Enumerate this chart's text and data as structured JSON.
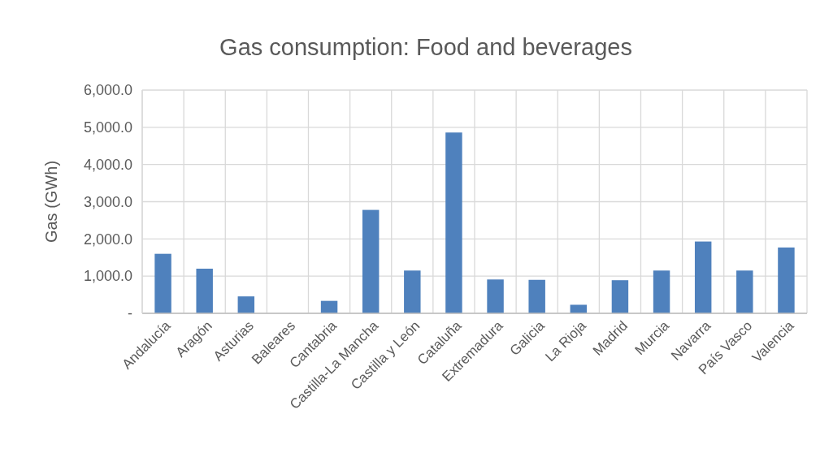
{
  "chart_data": {
    "type": "bar",
    "title": "Gas consumption: Food and beverages",
    "ylabel": "Gas (GWh)",
    "categories": [
      "Andalucía",
      "Aragón",
      "Asturias",
      "Baleares",
      "Cantabria",
      "Castilla-La Mancha",
      "Castilla y León",
      "Cataluña",
      "Extremadura",
      "Galicia",
      "La Rioja",
      "Madrid",
      "Murcia",
      "Navarra",
      "País Vasco",
      "Valencia"
    ],
    "values": [
      1600,
      1200,
      455,
      0,
      335,
      2780,
      1150,
      4860,
      910,
      900,
      230,
      890,
      1150,
      1930,
      1150,
      1770
    ],
    "color": "#4f81bd",
    "ylim": [
      0,
      6000
    ],
    "yticks": [
      {
        "value": 0,
        "label": "-"
      },
      {
        "value": 1000,
        "label": "1,000.0"
      },
      {
        "value": 2000,
        "label": "2,000.0"
      },
      {
        "value": 3000,
        "label": "3,000.0"
      },
      {
        "value": 4000,
        "label": "4,000.0"
      },
      {
        "value": 5000,
        "label": "5,000.0"
      },
      {
        "value": 6000,
        "label": "6,000.0"
      }
    ],
    "grid": true
  }
}
